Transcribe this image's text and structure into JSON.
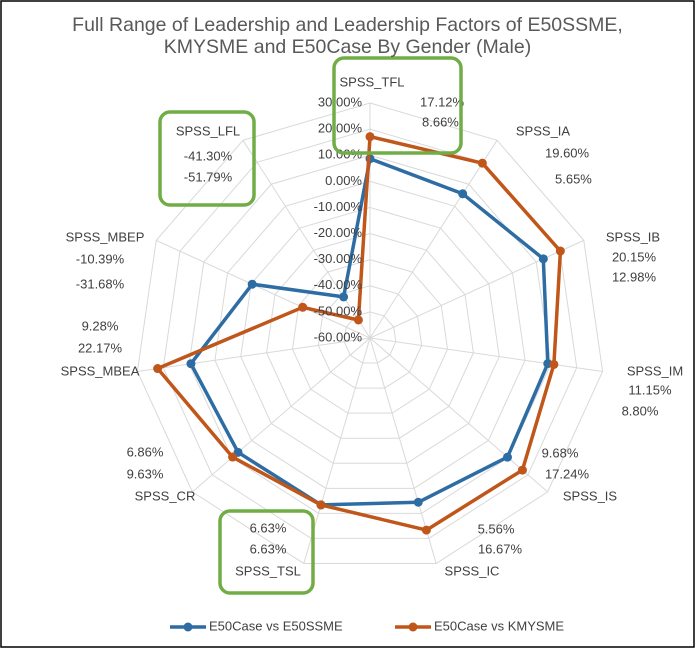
{
  "chart_data": {
    "type": "radar",
    "title": "Full Range of Leadership and Leadership Factors of E50SSME, KMYSME and E50Case By Gender (Male)",
    "categories": [
      "SPSS_TFL",
      "SPSS_IA",
      "SPSS_IB",
      "SPSS_IM",
      "SPSS_IS",
      "SPSS_IC",
      "SPSS_TSL",
      "SPSS_CR",
      "SPSS_MBEA",
      "SPSS_MBEP",
      "SPSS_LFL"
    ],
    "series": [
      {
        "name": "E50Case vs E50SSME",
        "color": "#2e6ca4",
        "values": [
          8.66,
          5.65,
          12.98,
          8.8,
          9.68,
          5.56,
          6.63,
          6.86,
          9.28,
          -10.39,
          -41.3
        ],
        "value_labels": [
          "8.66%",
          "5.65%",
          "12.98%",
          "8.80%",
          "9.68%",
          "5.56%",
          "6.63%",
          "6.86%",
          "9.28%",
          "-10.39%",
          "-41.30%"
        ]
      },
      {
        "name": "E50Case vs KMYSME",
        "color": "#c0561a",
        "values": [
          17.12,
          19.6,
          20.15,
          11.15,
          17.24,
          16.67,
          6.63,
          9.63,
          22.17,
          -31.68,
          -51.79
        ],
        "value_labels": [
          "17.12%",
          "19.60%",
          "20.15%",
          "11.15%",
          "17.24%",
          "16.67%",
          "6.63%",
          "9.63%",
          "22.17%",
          "-31.68%",
          "-51.79%"
        ]
      }
    ],
    "ylim": [
      -60,
      30
    ],
    "yticks": [
      {
        "value": 30,
        "label": "30.00%"
      },
      {
        "value": 20,
        "label": "20.00%"
      },
      {
        "value": 10,
        "label": "10.00%"
      },
      {
        "value": 0,
        "label": "0.00%"
      },
      {
        "value": -10,
        "label": "-10.00%"
      },
      {
        "value": -20,
        "label": "-20.00%"
      },
      {
        "value": -30,
        "label": "-30.00%"
      },
      {
        "value": -40,
        "label": "-40.00%"
      },
      {
        "value": -50,
        "label": "-50.00%"
      },
      {
        "value": -60,
        "label": "-60.00%"
      }
    ],
    "grid": true,
    "legend": "bottom"
  }
}
